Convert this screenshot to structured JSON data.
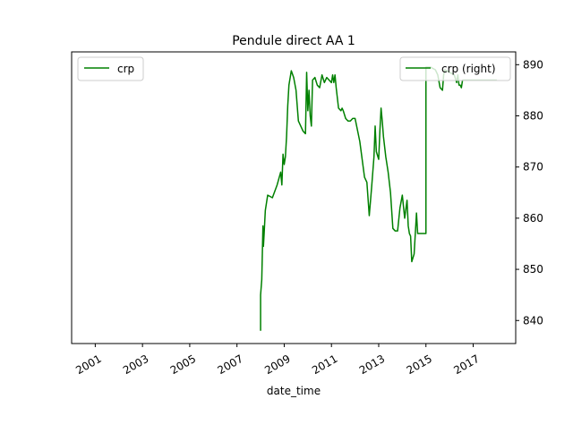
{
  "chart_data": {
    "type": "line",
    "title": "Pendule direct AA 1",
    "xlabel": "date_time",
    "ylabel": "",
    "xlim": [
      2000.0,
      2018.8
    ],
    "ylim_right": [
      835.5,
      892.5
    ],
    "x_ticks": [
      2001,
      2003,
      2005,
      2007,
      2009,
      2011,
      2013,
      2015,
      2017
    ],
    "y_ticks_right": [
      840,
      850,
      860,
      870,
      880,
      890
    ],
    "grid": false,
    "legends": [
      {
        "placement": "upper-left",
        "entries": [
          "crp"
        ]
      },
      {
        "placement": "upper-right",
        "entries": [
          "crp (right)"
        ]
      }
    ],
    "series": [
      {
        "name": "crp (right)",
        "axis": "right",
        "color": "#008000",
        "x": [
          2008.0,
          2008.0,
          2008.05,
          2008.1,
          2008.12,
          2008.15,
          2008.2,
          2008.3,
          2008.5,
          2008.7,
          2008.85,
          2008.9,
          2008.95,
          2009.0,
          2009.05,
          2009.1,
          2009.15,
          2009.2,
          2009.3,
          2009.4,
          2009.5,
          2009.6,
          2009.7,
          2009.8,
          2009.9,
          2009.95,
          2010.0,
          2010.05,
          2010.1,
          2010.15,
          2010.2,
          2010.3,
          2010.4,
          2010.5,
          2010.6,
          2010.7,
          2010.8,
          2010.9,
          2011.0,
          2011.05,
          2011.1,
          2011.15,
          2011.2,
          2011.3,
          2011.4,
          2011.45,
          2011.5,
          2011.6,
          2011.7,
          2011.8,
          2011.9,
          2012.0,
          2012.2,
          2012.4,
          2012.5,
          2012.6,
          2012.7,
          2012.8,
          2012.85,
          2012.9,
          2013.0,
          2013.05,
          2013.1,
          2013.15,
          2013.2,
          2013.3,
          2013.4,
          2013.5,
          2013.6,
          2013.7,
          2013.8,
          2013.9,
          2014.0,
          2014.1,
          2014.2,
          2014.25,
          2014.3,
          2014.35,
          2014.4,
          2014.5,
          2014.6,
          2014.65,
          2014.7,
          2014.8,
          2014.9,
          2015.0,
          2015.0,
          2015.2,
          2015.4,
          2015.5,
          2015.6,
          2015.7,
          2015.75,
          2015.8,
          2016.0,
          2016.2,
          2016.3,
          2016.35,
          2016.4,
          2016.45,
          2016.5,
          2016.55,
          2016.6,
          2016.8,
          2017.0,
          2017.5,
          2018.0
        ],
        "y": [
          838.0,
          845.0,
          848.0,
          858.5,
          854.5,
          857.0,
          861.5,
          864.5,
          864.0,
          866.5,
          869.0,
          866.5,
          872.5,
          870.5,
          872.0,
          876.0,
          882.0,
          886.0,
          888.8,
          887.5,
          885.0,
          879.0,
          878.0,
          877.0,
          876.5,
          888.5,
          881.0,
          885.0,
          880.0,
          878.0,
          887.0,
          887.5,
          886.0,
          885.5,
          888.0,
          886.5,
          887.5,
          887.0,
          886.5,
          888.0,
          886.5,
          888.0,
          885.5,
          881.5,
          881.0,
          881.5,
          881.0,
          879.5,
          879.0,
          879.0,
          879.5,
          879.5,
          875.0,
          868.0,
          867.0,
          860.5,
          866.0,
          872.0,
          878.0,
          873.0,
          871.5,
          877.0,
          881.5,
          879.0,
          876.0,
          872.0,
          869.0,
          865.0,
          858.0,
          857.5,
          857.5,
          862.0,
          864.5,
          860.0,
          863.5,
          858.5,
          857.0,
          856.5,
          851.5,
          853.0,
          861.0,
          857.0,
          857.0,
          857.0,
          857.0,
          857.0,
          889.5,
          889.5,
          889.0,
          888.0,
          885.5,
          885.0,
          888.0,
          889.0,
          888.5,
          888.0,
          886.5,
          888.0,
          886.0,
          886.0,
          885.5,
          887.0,
          887.0,
          887.0,
          887.0,
          887.0,
          887.0
        ]
      }
    ]
  }
}
